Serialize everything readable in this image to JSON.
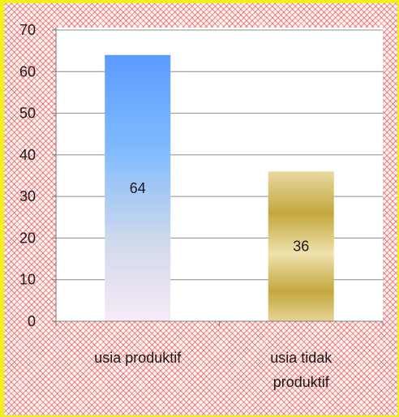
{
  "chart_data": {
    "type": "bar",
    "categories": [
      "usia produktif",
      "usia tidak produktif"
    ],
    "category_lines": [
      [
        "usia produktif"
      ],
      [
        "usia tidak",
        "produktif"
      ]
    ],
    "values": [
      64,
      36
    ],
    "data_labels": [
      "64",
      "36"
    ],
    "ylim": [
      0,
      70
    ],
    "yticks": [
      0,
      10,
      20,
      30,
      40,
      50,
      60,
      70
    ],
    "grid": true,
    "legend": "none"
  },
  "colors": {
    "frame_border": "#f2ef1a",
    "hatch": "#eb2828",
    "bar1_top": "#5b9bff",
    "bar1_bottom": "#f8eaf6",
    "bar2_light": "#e8d9a0",
    "bar2_dark": "#c4a73e"
  }
}
